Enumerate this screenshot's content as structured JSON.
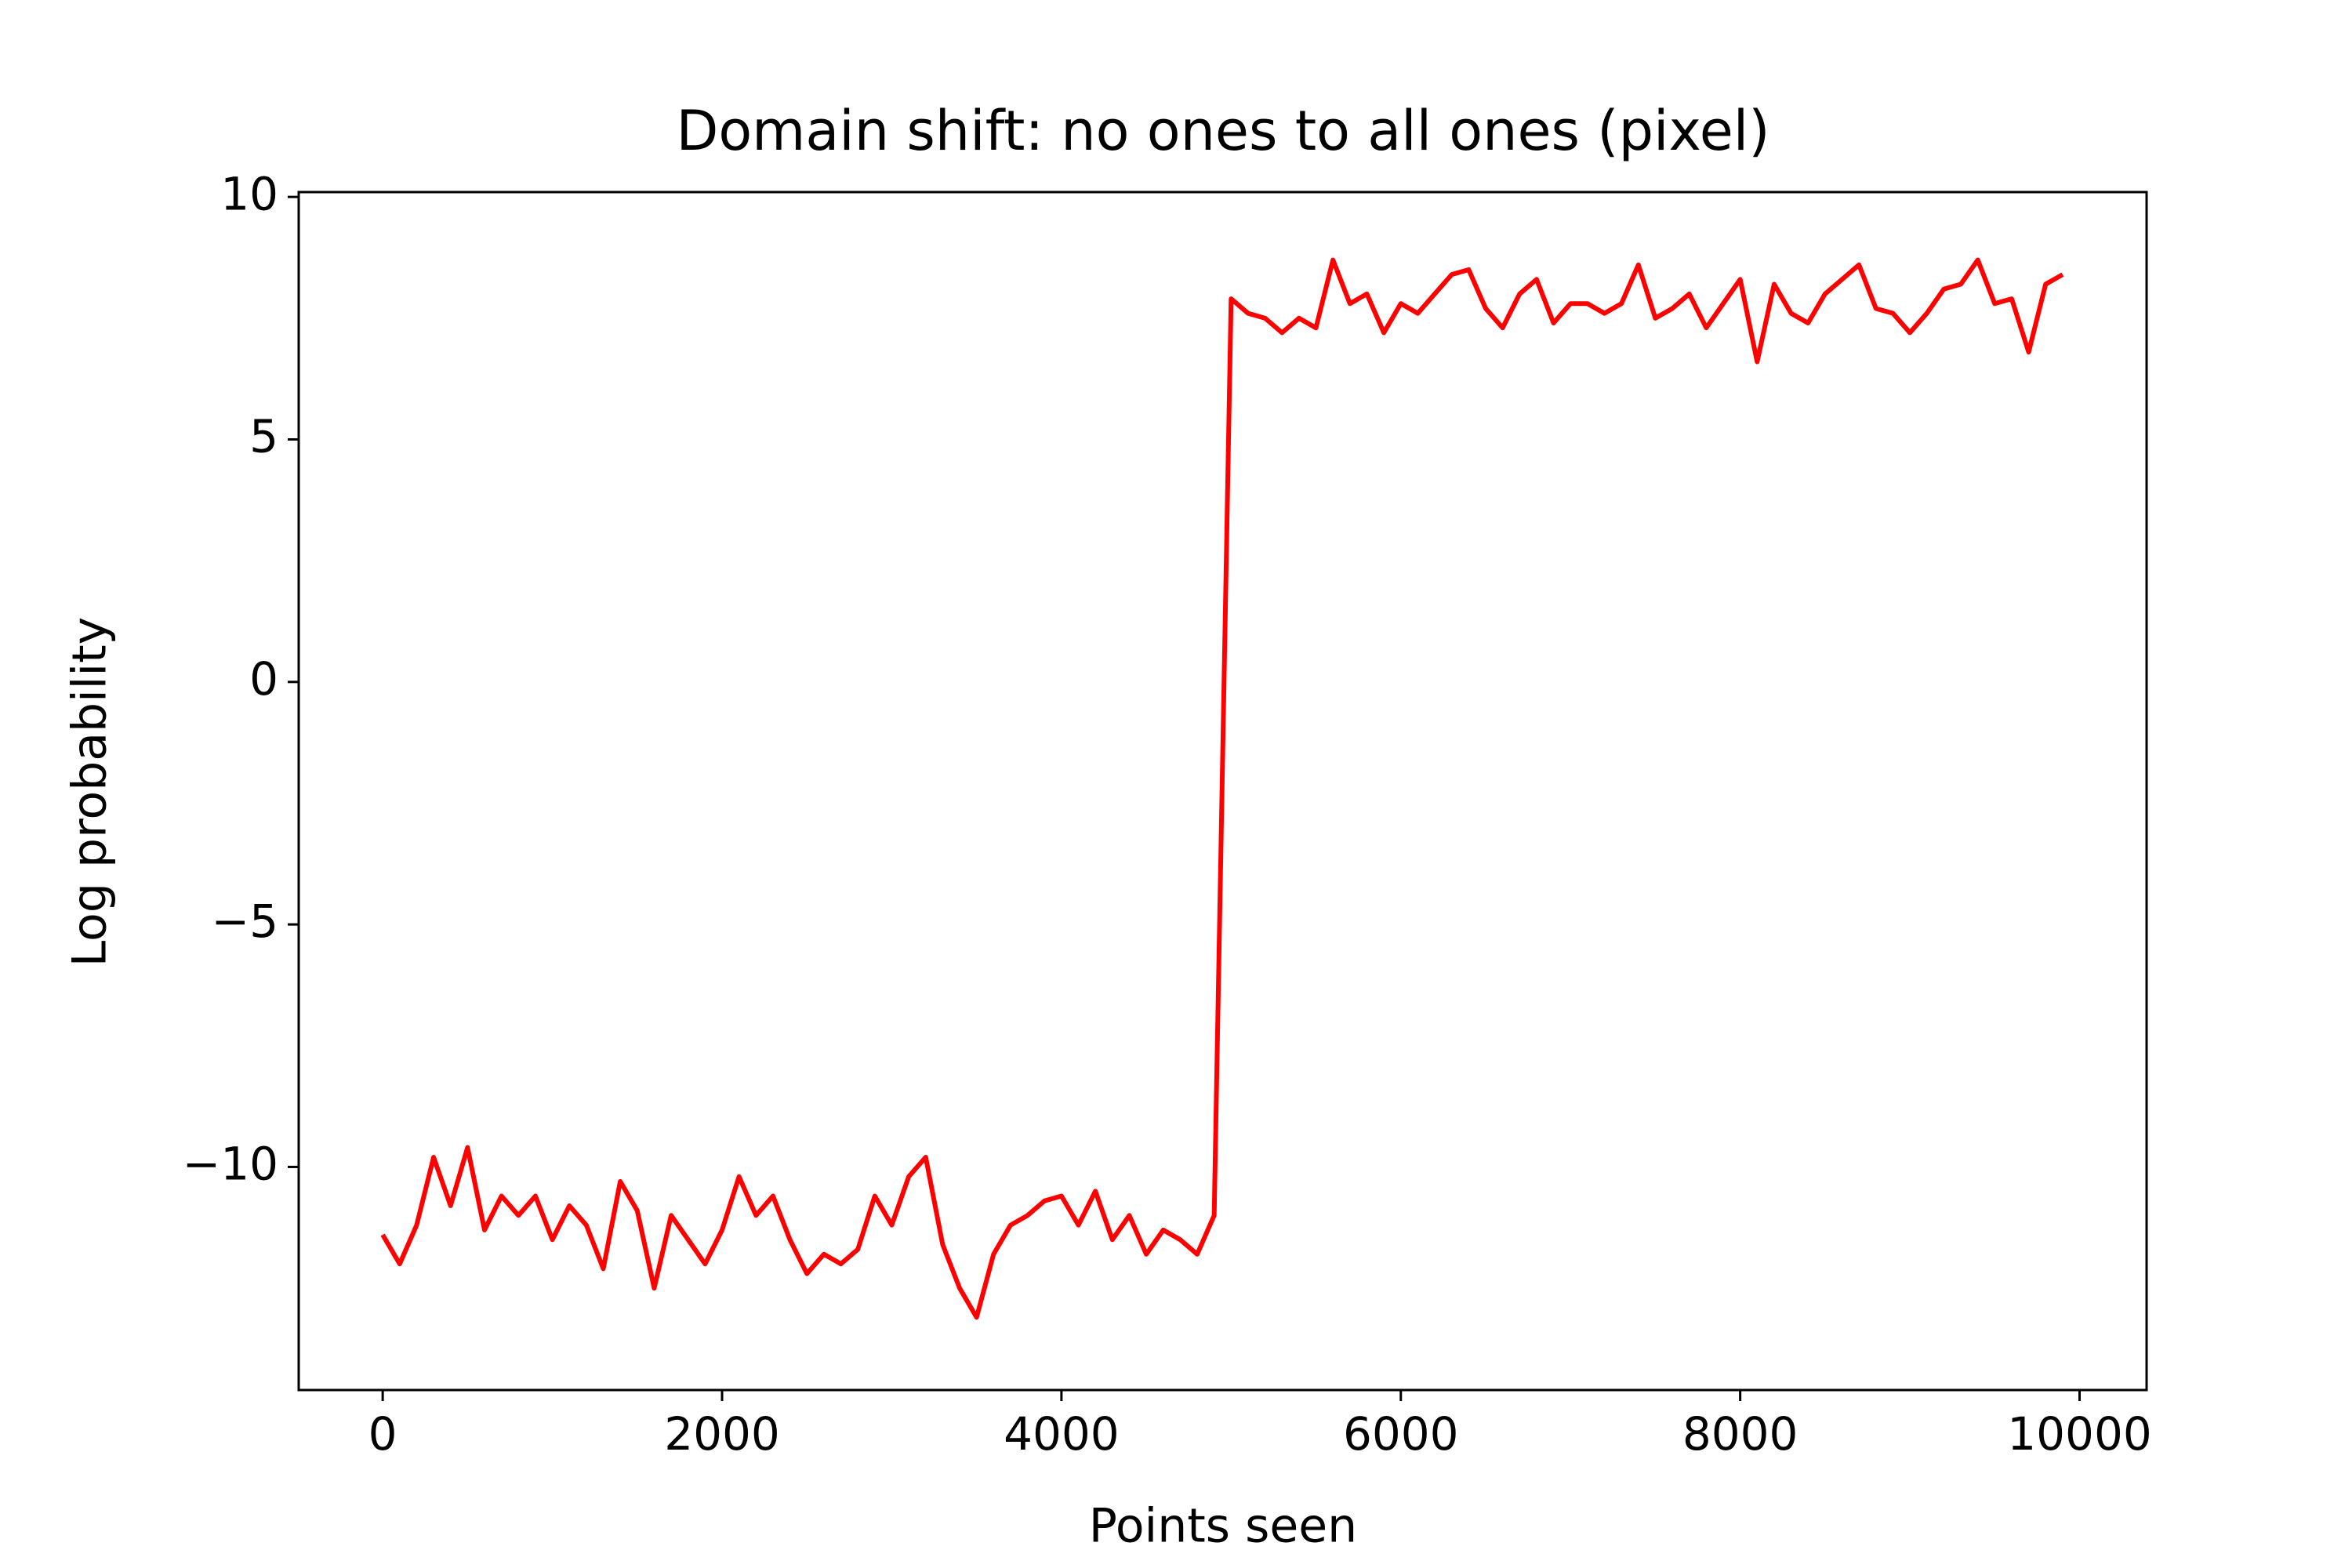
{
  "chart_data": {
    "type": "line",
    "title": "Domain shift: no ones to all ones (pixel)",
    "x_label": "Points seen",
    "y_label": "Log probability",
    "x": [
      0,
      100,
      200,
      300,
      400,
      500,
      600,
      700,
      800,
      900,
      1000,
      1100,
      1200,
      1300,
      1400,
      1500,
      1600,
      1700,
      1800,
      1900,
      2000,
      2100,
      2200,
      2300,
      2400,
      2500,
      2600,
      2700,
      2800,
      2900,
      3000,
      3100,
      3200,
      3300,
      3400,
      3500,
      3600,
      3700,
      3800,
      3900,
      4000,
      4100,
      4200,
      4300,
      4400,
      4500,
      4600,
      4700,
      4800,
      4900,
      5000,
      5100,
      5200,
      5300,
      5400,
      5500,
      5600,
      5700,
      5800,
      5900,
      6000,
      6100,
      6200,
      6300,
      6400,
      6500,
      6600,
      6700,
      6800,
      6900,
      7000,
      7100,
      7200,
      7300,
      7400,
      7500,
      7600,
      7700,
      7800,
      7900,
      8000,
      8100,
      8200,
      8300,
      8400,
      8500,
      8600,
      8700,
      8800,
      8900,
      9000,
      9100,
      9200,
      9300,
      9400,
      9500,
      9600,
      9700,
      9800,
      9900
    ],
    "series": [
      {
        "color": "#ff0000",
        "values": [
          -11.4,
          -12,
          -11.2,
          -9.8,
          -10.8,
          -9.6,
          -11.3,
          -10.6,
          -11,
          -10.6,
          -11.5,
          -10.8,
          -11.2,
          -12.1,
          -10.3,
          -10.9,
          -12.5,
          -11,
          -11.5,
          -12,
          -11.3,
          -10.2,
          -11,
          -10.6,
          -11.5,
          -12.2,
          -11.8,
          -12,
          -11.7,
          -10.6,
          -11.2,
          -10.2,
          -9.8,
          -11.6,
          -12.5,
          -13.1,
          -11.8,
          -11.2,
          -11,
          -10.7,
          -10.6,
          -11.2,
          -10.5,
          -11.5,
          -11,
          -11.8,
          -11.3,
          -11.5,
          -11.8,
          -11,
          7.9,
          7.6,
          7.5,
          7.2,
          7.5,
          7.3,
          8.7,
          7.8,
          8,
          7.2,
          7.8,
          7.6,
          8,
          8.4,
          8.5,
          7.7,
          7.3,
          8,
          8.3,
          7.4,
          7.8,
          7.8,
          7.6,
          7.8,
          8.6,
          7.5,
          7.7,
          8,
          7.3,
          7.8,
          8.3,
          6.6,
          8.2,
          7.6,
          7.4,
          8,
          8.3,
          8.6,
          7.7,
          7.6,
          7.2,
          7.6,
          8.1,
          8.2,
          8.7,
          7.8,
          7.9,
          6.8,
          8.2,
          8.4
        ]
      }
    ],
    "xlim": [
      -495,
      10395
    ],
    "ylim": [
      -14.6,
      10.1
    ],
    "xticks": [
      0,
      2000,
      4000,
      6000,
      8000,
      10000
    ],
    "yticks": [
      {
        "value": -10,
        "label": "−10"
      },
      {
        "value": -5,
        "label": "−5"
      },
      0,
      5,
      10
    ],
    "grid": false
  }
}
